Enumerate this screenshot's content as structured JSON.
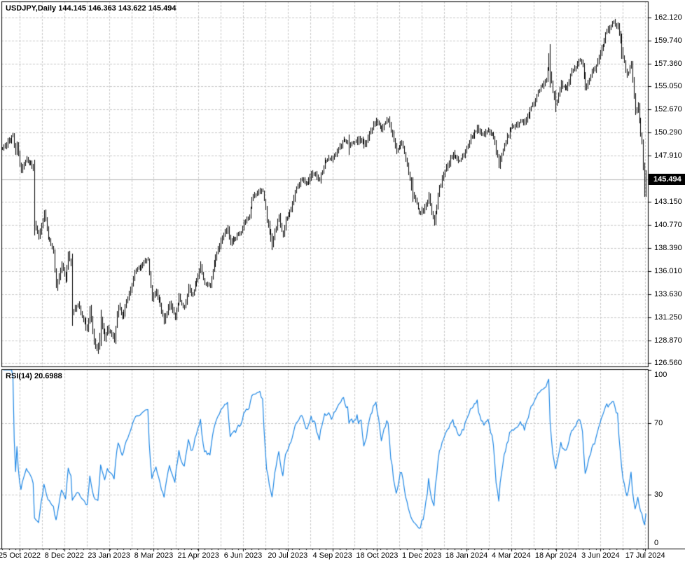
{
  "header": {
    "title_text": "USDJPY,Daily",
    "ohlc_text": "144.145 146.363 143.622 145.494"
  },
  "indicator": {
    "label": "RSI(14)",
    "value": "20.6988"
  },
  "price_axis": {
    "current_price": "145.494",
    "labels": [
      "162.120",
      "159.740",
      "157.360",
      "155.050",
      "152.670",
      "150.290",
      "147.910",
      "143.150",
      "140.770",
      "138.390",
      "136.010",
      "133.630",
      "131.250",
      "128.870",
      "126.560"
    ],
    "values": [
      162.12,
      159.74,
      157.36,
      155.05,
      152.67,
      150.29,
      147.91,
      143.15,
      140.77,
      138.39,
      136.01,
      133.63,
      131.25,
      128.87,
      126.56
    ]
  },
  "rsi_axis": {
    "labels": [
      "100",
      "70",
      "30",
      "0"
    ],
    "values": [
      100,
      70,
      30,
      0
    ]
  },
  "time_axis": {
    "labels": [
      "25 Oct 2022",
      "8 Dec 2022",
      "23 Jan 2023",
      "8 Mar 2023",
      "21 Apr 2023",
      "6 Jun 2023",
      "20 Jul 2023",
      "4 Sep 2023",
      "18 Oct 2023",
      "1 Dec 2023",
      "18 Jan 2024",
      "4 Mar 2024",
      "18 Apr 2024",
      "3 Jun 2024",
      "17 Jul 2024"
    ]
  },
  "colors": {
    "background": "#ffffff",
    "bars": "#000000",
    "grid": "#c8c8c8",
    "rsi_line": "#1e87e5",
    "price_line": "#b8b8b8",
    "frame": "#000000",
    "tag_bg": "#000000",
    "tag_text": "#ffffff"
  },
  "chart_data": [
    {
      "type": "bar",
      "title": "USDJPY,Daily",
      "symbol": "USDJPY",
      "timeframe": "Daily",
      "bars_total": 478,
      "ylim": [
        126.2,
        163.8
      ],
      "y_ticks": [
        162.12,
        159.74,
        157.36,
        155.05,
        152.67,
        150.29,
        147.91,
        143.15,
        140.77,
        138.39,
        136.01,
        133.63,
        131.25,
        128.87,
        126.56
      ],
      "x_labels": [
        "25 Oct 2022",
        "8 Dec 2022",
        "23 Jan 2023",
        "8 Mar 2023",
        "21 Apr 2023",
        "6 Jun 2023",
        "20 Jul 2023",
        "4 Sep 2023",
        "18 Oct 2023",
        "1 Dec 2023",
        "18 Jan 2024",
        "4 Mar 2024",
        "18 Apr 2024",
        "3 Jun 2024",
        "17 Jul 2024"
      ],
      "last_bar": {
        "open": 144.145,
        "high": 146.363,
        "low": 143.622,
        "close": 145.494
      },
      "current_price": 145.494,
      "close_anchors": [
        [
          0,
          148.5
        ],
        [
          4,
          149.3
        ],
        [
          8,
          149.9
        ],
        [
          10,
          148.3
        ],
        [
          11,
          149.2
        ],
        [
          12,
          148.0
        ],
        [
          14,
          146.4
        ],
        [
          18,
          147.7
        ],
        [
          21,
          147.0
        ],
        [
          23,
          146.6
        ],
        [
          24,
          140.9
        ],
        [
          27,
          139.3
        ],
        [
          31,
          142.0
        ],
        [
          34,
          139.6
        ],
        [
          38,
          138.0
        ],
        [
          40,
          134.3
        ],
        [
          44,
          136.7
        ],
        [
          47,
          135.2
        ],
        [
          49,
          137.7
        ],
        [
          51,
          136.6
        ],
        [
          52,
          131.7
        ],
        [
          56,
          132.6
        ],
        [
          60,
          131.1
        ],
        [
          63,
          129.9
        ],
        [
          65,
          132.1
        ],
        [
          68,
          128.6
        ],
        [
          71,
          127.9
        ],
        [
          73,
          131.0
        ],
        [
          76,
          129.2
        ],
        [
          78,
          130.1
        ],
        [
          83,
          128.9
        ],
        [
          86,
          132.6
        ],
        [
          89,
          131.3
        ],
        [
          95,
          134.2
        ],
        [
          99,
          136.2
        ],
        [
          104,
          136.8
        ],
        [
          108,
          137.2
        ],
        [
          111,
          133.2
        ],
        [
          114,
          134.0
        ],
        [
          117,
          132.4
        ],
        [
          120,
          130.7
        ],
        [
          124,
          132.8
        ],
        [
          128,
          131.3
        ],
        [
          131,
          133.3
        ],
        [
          135,
          132.1
        ],
        [
          138,
          134.2
        ],
        [
          141,
          133.6
        ],
        [
          144,
          135.1
        ],
        [
          147,
          136.5
        ],
        [
          150,
          134.7
        ],
        [
          154,
          134.5
        ],
        [
          158,
          137.4
        ],
        [
          161,
          138.6
        ],
        [
          164,
          139.8
        ],
        [
          167,
          140.4
        ],
        [
          169,
          138.8
        ],
        [
          173,
          139.4
        ],
        [
          177,
          140.2
        ],
        [
          180,
          141.3
        ],
        [
          183,
          141.8
        ],
        [
          185,
          143.5
        ],
        [
          190,
          144.3
        ],
        [
          193,
          144.2
        ],
        [
          196,
          141.4
        ],
        [
          200,
          138.8
        ],
        [
          205,
          141.8
        ],
        [
          208,
          139.5
        ],
        [
          210,
          141.2
        ],
        [
          214,
          142.5
        ],
        [
          218,
          144.7
        ],
        [
          222,
          145.6
        ],
        [
          226,
          144.9
        ],
        [
          229,
          146.2
        ],
        [
          232,
          145.9
        ],
        [
          235,
          145.5
        ],
        [
          239,
          147.3
        ],
        [
          244,
          147.6
        ],
        [
          248,
          148.3
        ],
        [
          253,
          149.6
        ],
        [
          257,
          149.1
        ],
        [
          261,
          149.3
        ],
        [
          265,
          149.6
        ],
        [
          269,
          149.0
        ],
        [
          273,
          150.4
        ],
        [
          277,
          151.7
        ],
        [
          281,
          150.6
        ],
        [
          286,
          151.7
        ],
        [
          289,
          150.0
        ],
        [
          292,
          148.4
        ],
        [
          296,
          149.3
        ],
        [
          300,
          146.9
        ],
        [
          304,
          144.1
        ],
        [
          309,
          141.9
        ],
        [
          313,
          142.6
        ],
        [
          316,
          143.8
        ],
        [
          319,
          141.4
        ],
        [
          320,
          141.0
        ],
        [
          324,
          144.6
        ],
        [
          328,
          146.4
        ],
        [
          334,
          148.1
        ],
        [
          338,
          147.3
        ],
        [
          342,
          147.9
        ],
        [
          346,
          149.4
        ],
        [
          352,
          150.8
        ],
        [
          356,
          150.2
        ],
        [
          360,
          150.5
        ],
        [
          364,
          149.8
        ],
        [
          368,
          147.1
        ],
        [
          372,
          149.1
        ],
        [
          377,
          150.9
        ],
        [
          383,
          151.4
        ],
        [
          386,
          151.3
        ],
        [
          389,
          151.7
        ],
        [
          393,
          153.2
        ],
        [
          398,
          154.7
        ],
        [
          403,
          155.7
        ],
        [
          405,
          158.3
        ],
        [
          406,
          156.6
        ],
        [
          408,
          154.6
        ],
        [
          410,
          153.1
        ],
        [
          414,
          155.3
        ],
        [
          418,
          154.9
        ],
        [
          422,
          156.5
        ],
        [
          428,
          157.7
        ],
        [
          430,
          157.2
        ],
        [
          432,
          154.9
        ],
        [
          436,
          156.2
        ],
        [
          440,
          157.1
        ],
        [
          444,
          158.9
        ],
        [
          448,
          160.8
        ],
        [
          450,
          161.1
        ],
        [
          453,
          161.7
        ],
        [
          456,
          161.3
        ],
        [
          459,
          158.8
        ],
        [
          461,
          157.4
        ],
        [
          463,
          156.2
        ],
        [
          466,
          157.4
        ],
        [
          469,
          152.3
        ],
        [
          471,
          153.3
        ],
        [
          473,
          149.9
        ],
        [
          474,
          149.3
        ],
        [
          475,
          146.5
        ],
        [
          476,
          144.3
        ],
        [
          477,
          145.494
        ]
      ],
      "wide_range_bars": {
        "24": 2.0,
        "52": 2.2,
        "71": 0.7,
        "73": 1.2,
        "200": 0.7,
        "257": 1.1,
        "304": 1.5,
        "406": 2.4,
        "410": 1.0,
        "459": 1.4,
        "476": 1.2
      }
    },
    {
      "type": "line",
      "name": "RSI(14)",
      "period": 14,
      "source": "close",
      "last_value": 20.6988,
      "levels": [
        70,
        30
      ],
      "ylim": [
        0,
        100
      ],
      "legend_position": "top-left"
    }
  ]
}
